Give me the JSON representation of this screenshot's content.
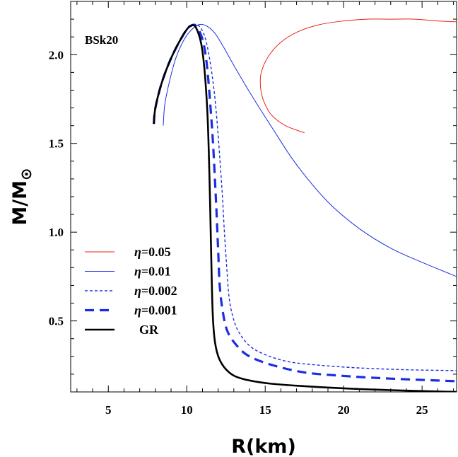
{
  "chart_data": {
    "type": "line",
    "title": "",
    "annotation": "BSk20",
    "xlabel": "R(km)",
    "ylabel": "M/M⊙",
    "ylabel_main": "M/M",
    "ylabel_sub": "⊙",
    "xlim": [
      2.6,
      27.2
    ],
    "ylim": [
      0.1,
      2.3
    ],
    "x_ticks": [
      5,
      10,
      15,
      20,
      25
    ],
    "x_tick_labels": [
      "5",
      "10",
      "15",
      "20",
      "25"
    ],
    "y_ticks": [
      0.5,
      1.0,
      1.5,
      2.0
    ],
    "y_tick_labels": [
      "0.5",
      "1.0",
      "1.5",
      "2.0"
    ],
    "grid": false,
    "legend_position": "lower-left",
    "series": [
      {
        "name": "η=0.05",
        "name_greek": "η",
        "name_rest": "=0.05",
        "color": "#e8231c",
        "style": "solid",
        "width": 1,
        "x": [
          17.5,
          16.3,
          15.4,
          14.9,
          14.7,
          14.75,
          15.2,
          16.0,
          17.1,
          18.5,
          20.0,
          21.5,
          23.0,
          24.5,
          26.0,
          27.2
        ],
        "y": [
          1.56,
          1.6,
          1.66,
          1.74,
          1.82,
          1.9,
          1.99,
          2.07,
          2.13,
          2.17,
          2.19,
          2.2,
          2.2,
          2.2,
          2.19,
          2.185
        ]
      },
      {
        "name": "η=0.01",
        "name_greek": "η",
        "name_rest": "=0.01",
        "color": "#1b2ee0",
        "style": "solid",
        "width": 1,
        "x": [
          8.5,
          8.6,
          8.9,
          9.3,
          9.8,
          10.3,
          10.8,
          11.3,
          11.8,
          12.3,
          13.0,
          14.0,
          15.5,
          17.0,
          19.0,
          21.0,
          23.0,
          25.0,
          27.2
        ],
        "y": [
          1.6,
          1.72,
          1.85,
          1.98,
          2.08,
          2.14,
          2.17,
          2.16,
          2.12,
          2.05,
          1.94,
          1.79,
          1.58,
          1.38,
          1.17,
          1.02,
          0.91,
          0.83,
          0.75
        ]
      },
      {
        "name": "η=0.002",
        "name_greek": "η",
        "name_rest": "=0.002",
        "color": "#1b2ee0",
        "style": "dotted",
        "width": 1.4,
        "x": [
          7.9,
          8.0,
          8.4,
          9.0,
          9.7,
          10.2,
          10.8,
          11.3,
          11.8,
          12.2,
          12.4,
          12.55,
          12.7,
          12.95,
          13.3,
          14.0,
          15.0,
          16.5,
          18.5,
          21.0,
          24.0,
          27.2
        ],
        "y": [
          1.61,
          1.7,
          1.84,
          1.98,
          2.1,
          2.16,
          2.16,
          2.05,
          1.75,
          1.3,
          1.0,
          0.8,
          0.63,
          0.52,
          0.44,
          0.36,
          0.31,
          0.27,
          0.25,
          0.235,
          0.225,
          0.22
        ]
      },
      {
        "name": "η=0.001",
        "name_greek": "η",
        "name_rest": "=0.001",
        "color": "#1b2ee0",
        "style": "dashed",
        "width": 3.2,
        "x": [
          7.9,
          8.0,
          8.4,
          9.0,
          9.7,
          10.2,
          10.7,
          11.2,
          11.6,
          11.85,
          12.0,
          12.1,
          12.3,
          12.6,
          13.2,
          14.0,
          15.5,
          17.5,
          20.0,
          23.0,
          27.2
        ],
        "y": [
          1.61,
          1.7,
          1.84,
          1.98,
          2.1,
          2.16,
          2.15,
          2.0,
          1.6,
          1.2,
          0.9,
          0.7,
          0.55,
          0.44,
          0.36,
          0.3,
          0.25,
          0.21,
          0.19,
          0.175,
          0.16
        ]
      },
      {
        "name": "GR",
        "color": "#000000",
        "style": "solid",
        "width": 2.6,
        "x": [
          7.9,
          8.0,
          8.4,
          9.0,
          9.7,
          10.2,
          10.6,
          11.0,
          11.3,
          11.45,
          11.55,
          11.65,
          11.8,
          12.1,
          12.7,
          13.5,
          15.0,
          17.0,
          20.0,
          23.0,
          27.2
        ],
        "y": [
          1.61,
          1.7,
          1.84,
          1.98,
          2.1,
          2.16,
          2.15,
          2.02,
          1.7,
          1.3,
          0.9,
          0.55,
          0.38,
          0.28,
          0.21,
          0.175,
          0.15,
          0.135,
          0.12,
          0.11,
          0.1
        ]
      }
    ]
  }
}
